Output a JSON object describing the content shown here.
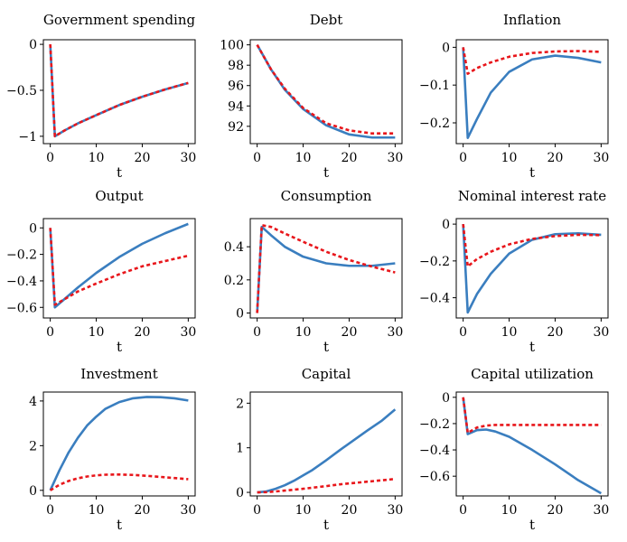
{
  "colors": {
    "series_solid": "#3a7ebf",
    "series_dashed": "#e8161b"
  },
  "chart_data": [
    {
      "type": "line",
      "title": "Government spending",
      "xlabel": "t",
      "xlim": [
        -1.5,
        31.5
      ],
      "ylim": [
        -1.08,
        0.05
      ],
      "xticks": [
        0,
        10,
        20,
        30
      ],
      "yticks": [
        0,
        -0.5,
        -1
      ],
      "yticklabels": [
        "0",
        "−0.5",
        "−1"
      ],
      "series": [
        {
          "name": "solid",
          "style": "solid",
          "x": [
            0,
            1,
            3,
            6,
            10,
            15,
            20,
            25,
            30
          ],
          "y": [
            0,
            -1.0,
            -0.94,
            -0.86,
            -0.77,
            -0.66,
            -0.57,
            -0.49,
            -0.42
          ]
        },
        {
          "name": "dashed",
          "style": "dashed",
          "x": [
            0,
            1,
            3,
            6,
            10,
            15,
            20,
            25,
            30
          ],
          "y": [
            0,
            -1.0,
            -0.94,
            -0.86,
            -0.77,
            -0.66,
            -0.57,
            -0.49,
            -0.42
          ]
        }
      ]
    },
    {
      "type": "line",
      "title": "Debt",
      "xlabel": "t",
      "xlim": [
        -1.5,
        31.5
      ],
      "ylim": [
        90.3,
        100.5
      ],
      "xticks": [
        0,
        10,
        20,
        30
      ],
      "yticks": [
        100,
        98,
        96,
        94,
        92
      ],
      "yticklabels": [
        "100",
        "98",
        "96",
        "94",
        "92"
      ],
      "series": [
        {
          "name": "solid",
          "style": "solid",
          "x": [
            0,
            3,
            6,
            10,
            15,
            20,
            25,
            30
          ],
          "y": [
            100,
            97.6,
            95.6,
            93.7,
            92.1,
            91.2,
            90.9,
            90.9
          ]
        },
        {
          "name": "dashed",
          "style": "dashed",
          "x": [
            0,
            3,
            6,
            10,
            15,
            20,
            25,
            30
          ],
          "y": [
            100,
            97.6,
            95.7,
            93.8,
            92.3,
            91.6,
            91.3,
            91.3
          ]
        }
      ]
    },
    {
      "type": "line",
      "title": "Inflation",
      "xlabel": "t",
      "xlim": [
        -1.5,
        31.5
      ],
      "ylim": [
        -0.255,
        0.02
      ],
      "xticks": [
        0,
        10,
        20,
        30
      ],
      "yticks": [
        0,
        -0.1,
        -0.2
      ],
      "yticklabels": [
        "0",
        "−0.1",
        "−0.2"
      ],
      "series": [
        {
          "name": "solid",
          "style": "solid",
          "x": [
            0,
            1,
            3,
            6,
            10,
            15,
            20,
            25,
            30
          ],
          "y": [
            0,
            -0.24,
            -0.19,
            -0.12,
            -0.065,
            -0.032,
            -0.022,
            -0.028,
            -0.04
          ]
        },
        {
          "name": "dashed",
          "style": "dashed",
          "x": [
            0,
            1,
            3,
            6,
            10,
            15,
            20,
            25,
            30
          ],
          "y": [
            0,
            -0.07,
            -0.055,
            -0.04,
            -0.025,
            -0.015,
            -0.011,
            -0.01,
            -0.012
          ]
        }
      ]
    },
    {
      "type": "line",
      "title": "Output",
      "xlabel": "t",
      "xlim": [
        -1.5,
        31.5
      ],
      "ylim": [
        -0.68,
        0.07
      ],
      "xticks": [
        0,
        10,
        20,
        30
      ],
      "yticks": [
        0,
        -0.2,
        -0.4,
        -0.6
      ],
      "yticklabels": [
        "0",
        "−0.2",
        "−0.4",
        "−0.6"
      ],
      "series": [
        {
          "name": "solid",
          "style": "solid",
          "x": [
            0,
            1,
            3,
            6,
            10,
            15,
            20,
            25,
            30
          ],
          "y": [
            0,
            -0.6,
            -0.54,
            -0.45,
            -0.34,
            -0.22,
            -0.12,
            -0.04,
            0.03
          ]
        },
        {
          "name": "dashed",
          "style": "dashed",
          "x": [
            0,
            1,
            3,
            6,
            10,
            15,
            20,
            25,
            30
          ],
          "y": [
            0,
            -0.58,
            -0.54,
            -0.48,
            -0.42,
            -0.35,
            -0.29,
            -0.25,
            -0.21
          ]
        }
      ]
    },
    {
      "type": "line",
      "title": "Consumption",
      "xlabel": "t",
      "xlim": [
        -1.5,
        31.5
      ],
      "ylim": [
        -0.03,
        0.57
      ],
      "xticks": [
        0,
        10,
        20,
        30
      ],
      "yticks": [
        0,
        0.2,
        0.4
      ],
      "yticklabels": [
        "0",
        "0.2",
        "0.4"
      ],
      "series": [
        {
          "name": "solid",
          "style": "solid",
          "x": [
            0,
            1,
            3,
            6,
            10,
            15,
            20,
            25,
            30
          ],
          "y": [
            0,
            0.52,
            0.47,
            0.4,
            0.34,
            0.3,
            0.285,
            0.285,
            0.3
          ]
        },
        {
          "name": "dashed",
          "style": "dashed",
          "x": [
            0,
            1,
            3,
            6,
            10,
            15,
            20,
            25,
            30
          ],
          "y": [
            0,
            0.53,
            0.52,
            0.48,
            0.43,
            0.37,
            0.32,
            0.28,
            0.245
          ]
        }
      ]
    },
    {
      "type": "line",
      "title": "Nominal interest rate",
      "xlabel": "t",
      "xlim": [
        -1.5,
        31.5
      ],
      "ylim": [
        -0.51,
        0.03
      ],
      "xticks": [
        0,
        10,
        20,
        30
      ],
      "yticks": [
        0,
        -0.2,
        -0.4
      ],
      "yticklabels": [
        "0",
        "−0.2",
        "−0.4"
      ],
      "series": [
        {
          "name": "solid",
          "style": "solid",
          "x": [
            0,
            1,
            3,
            6,
            10,
            15,
            20,
            25,
            30
          ],
          "y": [
            0,
            -0.48,
            -0.38,
            -0.27,
            -0.16,
            -0.085,
            -0.055,
            -0.05,
            -0.058
          ]
        },
        {
          "name": "dashed",
          "style": "dashed",
          "x": [
            0,
            1,
            3,
            6,
            10,
            15,
            20,
            25,
            30
          ],
          "y": [
            0,
            -0.23,
            -0.19,
            -0.15,
            -0.11,
            -0.08,
            -0.065,
            -0.058,
            -0.06
          ]
        }
      ]
    },
    {
      "type": "line",
      "title": "Investment",
      "xlabel": "t",
      "xlim": [
        -1.5,
        31.5
      ],
      "ylim": [
        -0.25,
        4.4
      ],
      "xticks": [
        0,
        10,
        20,
        30
      ],
      "yticks": [
        0,
        2,
        4
      ],
      "yticklabels": [
        "0",
        "2",
        "4"
      ],
      "series": [
        {
          "name": "solid",
          "style": "solid",
          "x": [
            0,
            2,
            4,
            6,
            8,
            10,
            12,
            15,
            18,
            21,
            24,
            27,
            30
          ],
          "y": [
            0,
            0.9,
            1.7,
            2.35,
            2.9,
            3.3,
            3.65,
            3.95,
            4.12,
            4.18,
            4.17,
            4.12,
            4.02
          ]
        },
        {
          "name": "dashed",
          "style": "dashed",
          "x": [
            0,
            2,
            4,
            6,
            8,
            10,
            12,
            15,
            18,
            21,
            24,
            27,
            30
          ],
          "y": [
            0,
            0.25,
            0.42,
            0.54,
            0.62,
            0.67,
            0.7,
            0.71,
            0.69,
            0.65,
            0.6,
            0.55,
            0.5
          ]
        }
      ]
    },
    {
      "type": "line",
      "title": "Capital",
      "xlabel": "t",
      "xlim": [
        -1.5,
        31.5
      ],
      "ylim": [
        -0.08,
        2.25
      ],
      "xticks": [
        0,
        10,
        20,
        30
      ],
      "yticks": [
        0,
        1,
        2
      ],
      "yticklabels": [
        "0",
        "1",
        "2"
      ],
      "series": [
        {
          "name": "solid",
          "style": "solid",
          "x": [
            0,
            2,
            4,
            6,
            8,
            10,
            12,
            15,
            18,
            21,
            24,
            27,
            30
          ],
          "y": [
            0,
            0.02,
            0.08,
            0.16,
            0.26,
            0.38,
            0.5,
            0.72,
            0.95,
            1.17,
            1.39,
            1.6,
            1.86
          ]
        },
        {
          "name": "dashed",
          "style": "dashed",
          "x": [
            0,
            2,
            4,
            6,
            8,
            10,
            12,
            15,
            18,
            21,
            24,
            27,
            30
          ],
          "y": [
            0,
            0.005,
            0.02,
            0.04,
            0.06,
            0.08,
            0.105,
            0.14,
            0.18,
            0.21,
            0.24,
            0.27,
            0.3
          ]
        }
      ]
    },
    {
      "type": "line",
      "title": "Capital utilization",
      "xlabel": "t",
      "xlim": [
        -1.5,
        31.5
      ],
      "ylim": [
        -0.75,
        0.04
      ],
      "xticks": [
        0,
        10,
        20,
        30
      ],
      "yticks": [
        0,
        -0.2,
        -0.4,
        -0.6
      ],
      "yticklabels": [
        "0",
        "−0.2",
        "−0.4",
        "−0.6"
      ],
      "series": [
        {
          "name": "solid",
          "style": "solid",
          "x": [
            0,
            1,
            3,
            5,
            7,
            10,
            15,
            20,
            25,
            30
          ],
          "y": [
            0,
            -0.28,
            -0.25,
            -0.245,
            -0.26,
            -0.3,
            -0.4,
            -0.51,
            -0.63,
            -0.73
          ]
        },
        {
          "name": "dashed",
          "style": "dashed",
          "x": [
            0,
            1,
            3,
            5,
            7,
            10,
            15,
            20,
            25,
            30
          ],
          "y": [
            0,
            -0.27,
            -0.23,
            -0.215,
            -0.21,
            -0.21,
            -0.21,
            -0.21,
            -0.21,
            -0.21
          ]
        }
      ]
    }
  ]
}
